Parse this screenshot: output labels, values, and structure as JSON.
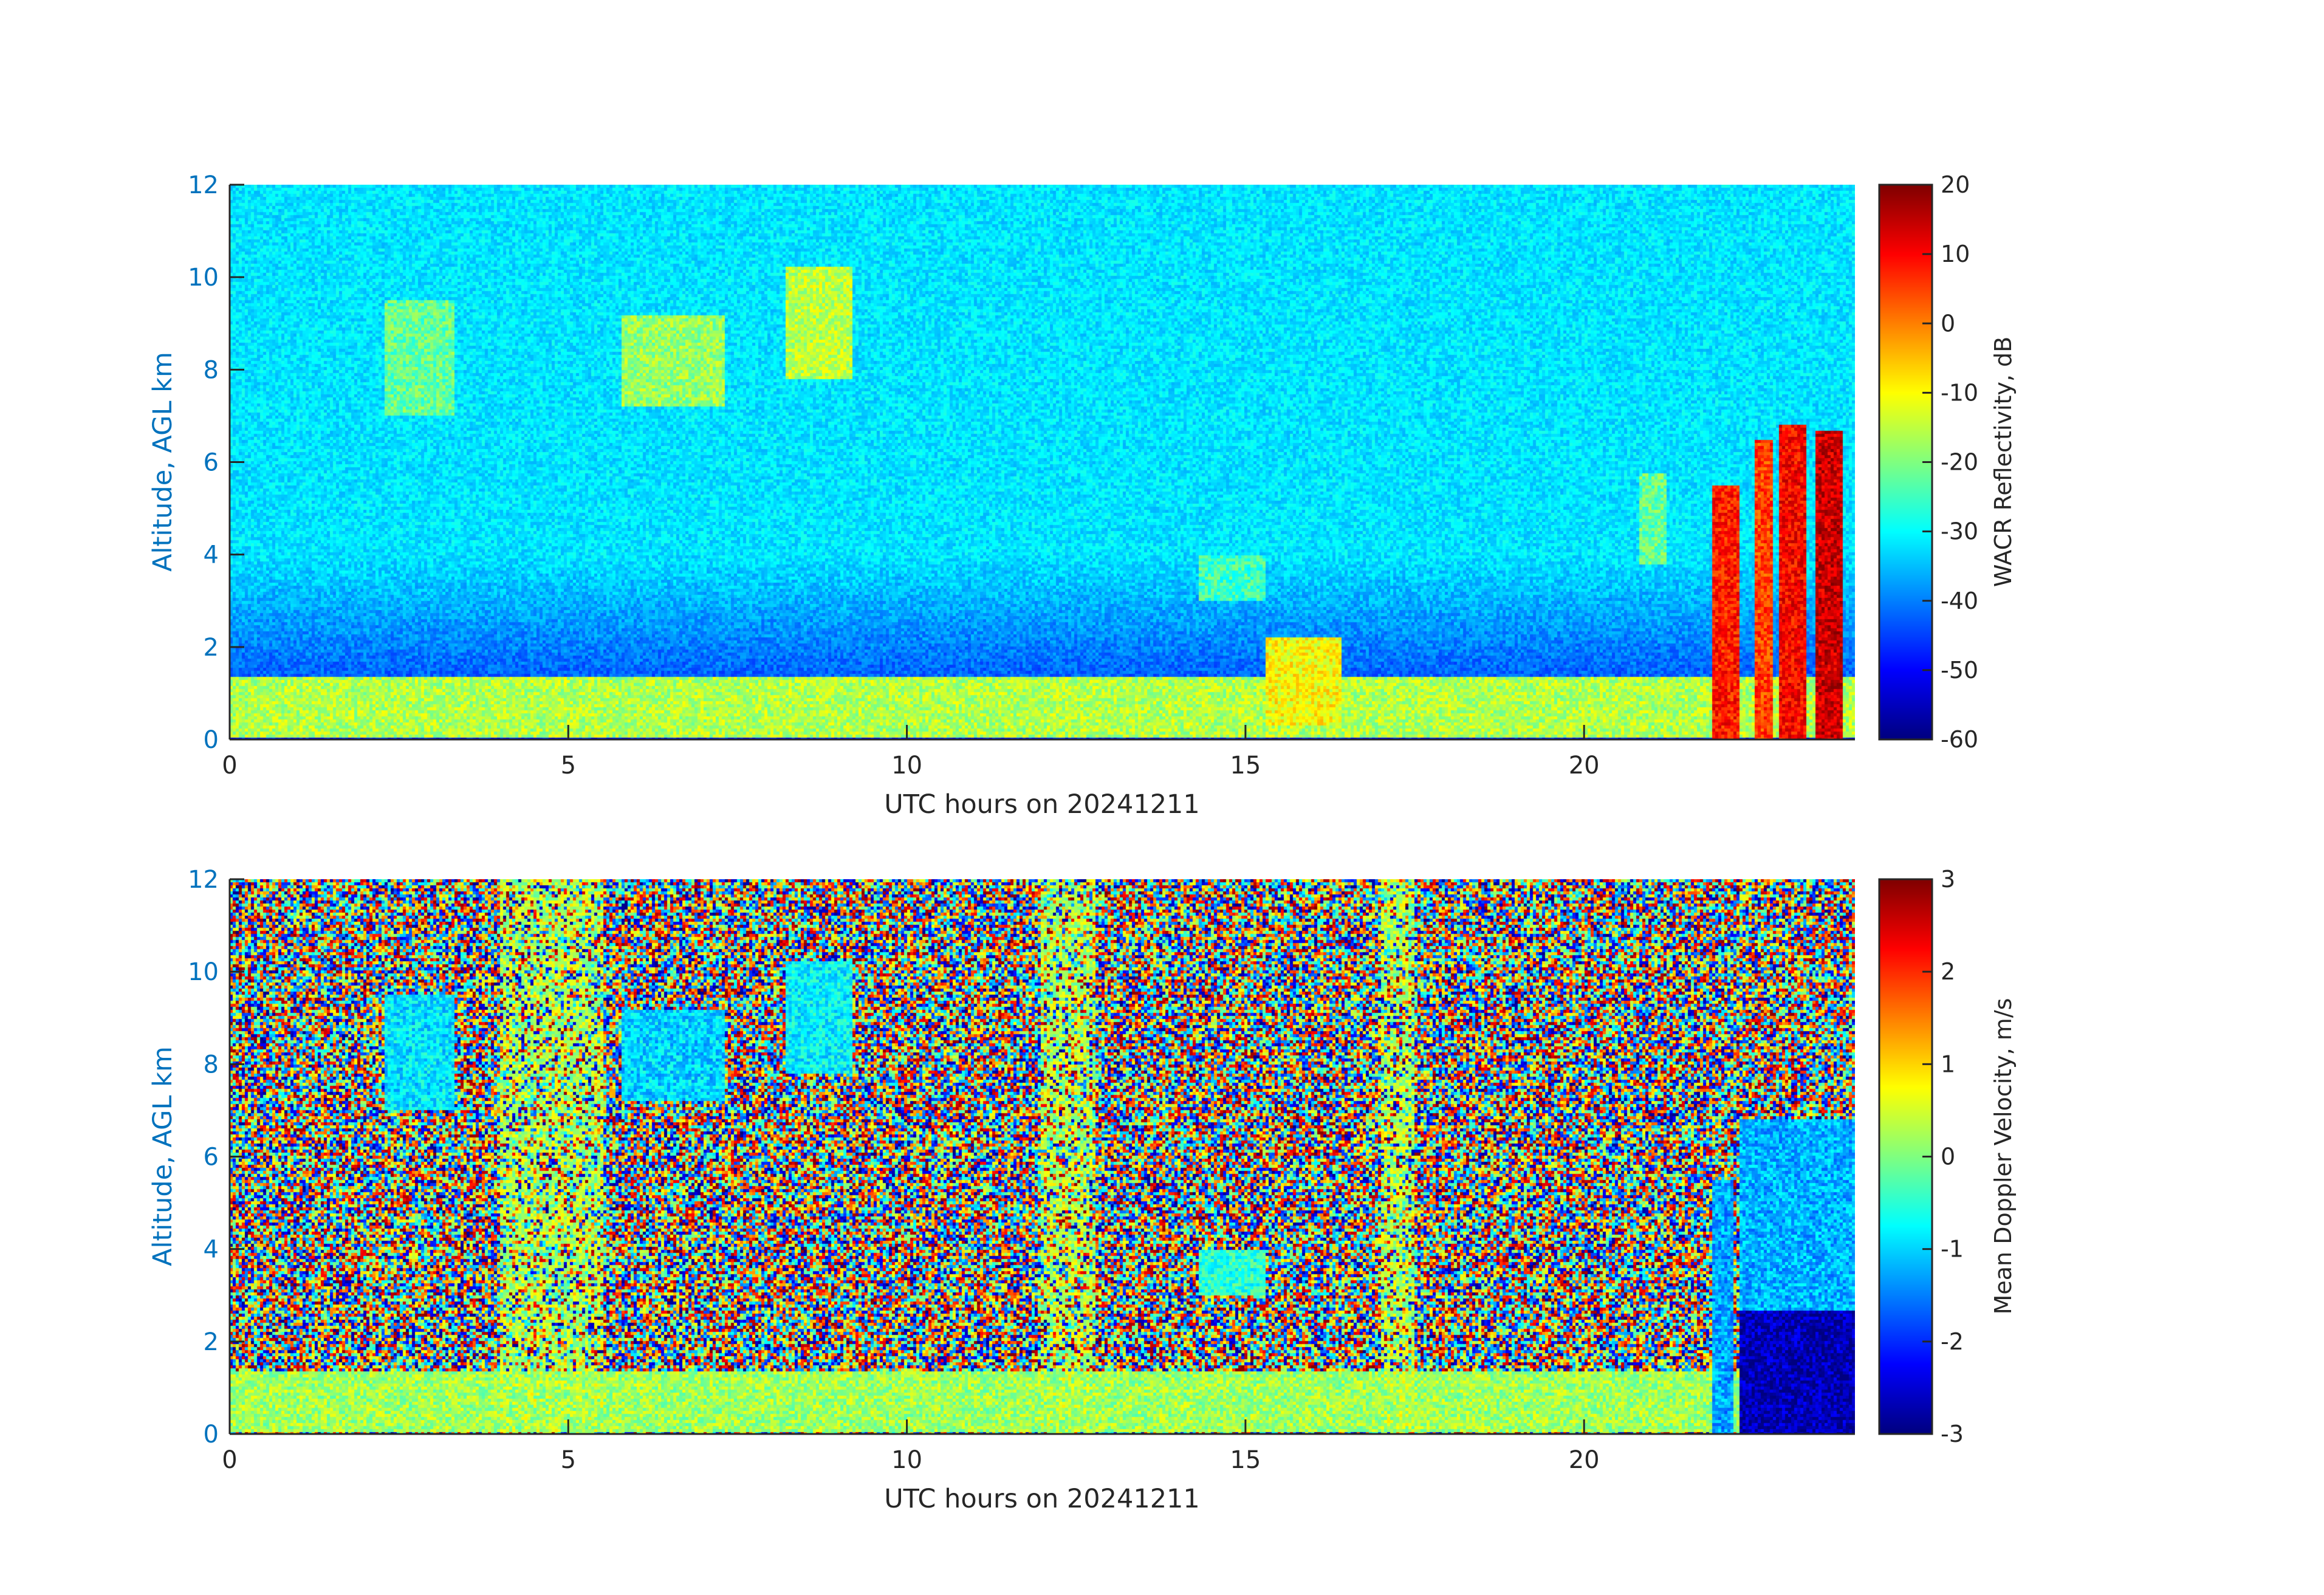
{
  "chart_data": [
    {
      "type": "heatmap",
      "xlabel": "UTC hours on 20241211",
      "ylabel": "Altitude, AGL km",
      "xlim": [
        0,
        24
      ],
      "ylim": [
        0,
        12
      ],
      "xticks": [
        0,
        5,
        10,
        15,
        20
      ],
      "yticks": [
        0,
        2,
        4,
        6,
        8,
        10,
        12
      ],
      "colorbar": {
        "label": "WACR Reflectivity, dB",
        "range": [
          -60,
          20
        ],
        "ticks": [
          20,
          10,
          0,
          -10,
          -20,
          -30,
          -40,
          -50,
          -60
        ],
        "colormap": "jet"
      },
      "background_noise_value": -32,
      "near_surface_noise_value": -48,
      "features": [
        {
          "t0": 0.0,
          "t1": 24.0,
          "z0": 0.05,
          "z1": 1.4,
          "value": -16,
          "desc": "boundary layer echo"
        },
        {
          "t0": 21.9,
          "t1": 22.3,
          "z0": 0.0,
          "z1": 5.5,
          "value": 8
        },
        {
          "t0": 22.5,
          "t1": 22.8,
          "z0": 0.0,
          "z1": 6.5,
          "value": 5
        },
        {
          "t0": 22.9,
          "t1": 23.3,
          "z0": 0.0,
          "z1": 6.8,
          "value": 10
        },
        {
          "t0": 23.4,
          "t1": 23.8,
          "z0": 0.0,
          "z1": 6.7,
          "value": 14
        },
        {
          "t0": 2.3,
          "t1": 3.3,
          "z0": 7.0,
          "z1": 9.5,
          "value": -22
        },
        {
          "t0": 5.8,
          "t1": 7.3,
          "z0": 7.2,
          "z1": 9.2,
          "value": -18
        },
        {
          "t0": 8.2,
          "t1": 9.2,
          "z0": 7.8,
          "z1": 10.2,
          "value": -15
        },
        {
          "t0": 14.3,
          "t1": 15.3,
          "z0": 3.0,
          "z1": 4.0,
          "value": -25
        },
        {
          "t0": 15.3,
          "t1": 16.4,
          "z0": 0.3,
          "z1": 2.2,
          "value": -10
        },
        {
          "t0": 20.8,
          "t1": 21.2,
          "z0": 3.8,
          "z1": 5.8,
          "value": -22
        }
      ]
    },
    {
      "type": "heatmap",
      "xlabel": "UTC hours on 20241211",
      "ylabel": "Altitude, AGL km",
      "xlim": [
        0,
        24
      ],
      "ylim": [
        0,
        12
      ],
      "xticks": [
        0,
        5,
        10,
        15,
        20
      ],
      "yticks": [
        0,
        2,
        4,
        6,
        8,
        10,
        12
      ],
      "colorbar": {
        "label": "Mean Doppler Velocity, m/s",
        "range": [
          -3,
          3
        ],
        "ticks": [
          3,
          2,
          1,
          0,
          -1,
          -2,
          -3
        ],
        "colormap": "jet"
      },
      "background": "random noise spanning -3 to 3 m/s",
      "features": [
        {
          "t0": 0.0,
          "t1": 24.0,
          "z0": 0.05,
          "z1": 1.4,
          "value": 0.2,
          "desc": "boundary layer"
        },
        {
          "t0": 22.3,
          "t1": 24.0,
          "z0": 2.7,
          "z1": 6.8,
          "value": -1.2
        },
        {
          "t0": 22.3,
          "t1": 24.0,
          "z0": 0.0,
          "z1": 2.7,
          "value": -2.7
        },
        {
          "t0": 21.9,
          "t1": 22.2,
          "z0": 0.0,
          "z1": 5.5,
          "value": -1.3
        },
        {
          "t0": 2.3,
          "t1": 3.3,
          "z0": 7.0,
          "z1": 9.5,
          "value": -0.9
        },
        {
          "t0": 5.8,
          "t1": 7.3,
          "z0": 7.2,
          "z1": 9.2,
          "value": -1.0
        },
        {
          "t0": 8.2,
          "t1": 9.2,
          "z0": 7.8,
          "z1": 10.2,
          "value": -0.8
        },
        {
          "t0": 14.3,
          "t1": 15.3,
          "z0": 3.0,
          "z1": 4.0,
          "value": -0.5
        },
        {
          "t0": 4.0,
          "t1": 5.5,
          "z0": 0.0,
          "z1": 12.0,
          "value": 0.3,
          "desc": "green column"
        },
        {
          "t0": 12.0,
          "t1": 12.8,
          "z0": 0.0,
          "z1": 12.0,
          "value": 0.3,
          "desc": "green column"
        },
        {
          "t0": 17.0,
          "t1": 17.5,
          "z0": 0.0,
          "z1": 12.0,
          "value": 0.3,
          "desc": "green column"
        }
      ]
    }
  ]
}
